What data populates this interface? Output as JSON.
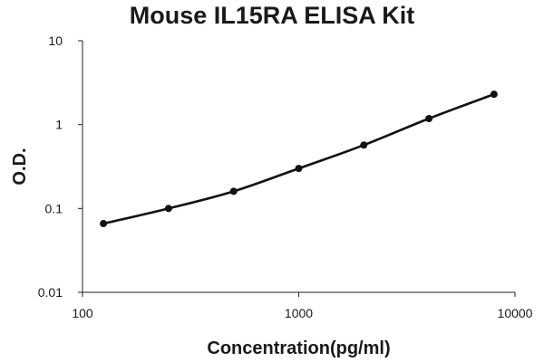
{
  "chart_data": {
    "type": "line",
    "title": "Mouse IL15RA ELISA Kit",
    "xlabel": "Concentration(pg/ml)",
    "ylabel": "O.D.",
    "xscale": "log",
    "yscale": "log",
    "xlim": [
      100,
      10000
    ],
    "ylim": [
      0.01,
      10
    ],
    "xticks": [
      "100",
      "1000",
      "10000"
    ],
    "yticks": [
      "0.01",
      "0.1",
      "1",
      "10"
    ],
    "grid": false,
    "legend": "none",
    "series": [
      {
        "x": [
          125,
          250,
          500,
          1000,
          2000,
          4000,
          8000
        ],
        "y": [
          0.066,
          0.1,
          0.16,
          0.3,
          0.57,
          1.18,
          2.3
        ],
        "color": "#111111",
        "marker": "circle"
      }
    ]
  }
}
